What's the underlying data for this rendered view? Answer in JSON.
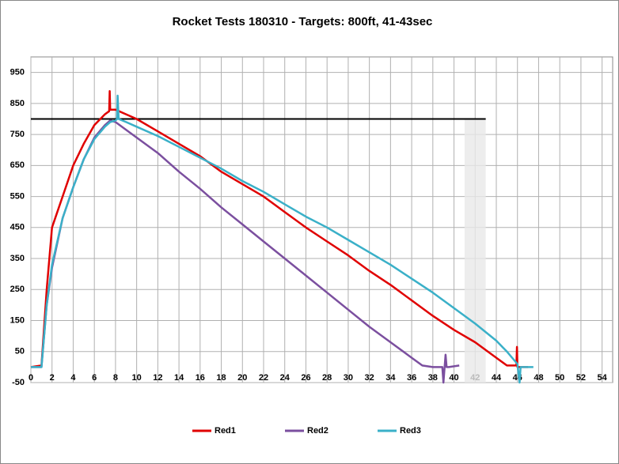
{
  "chart_data": {
    "type": "line",
    "title": "Rocket Tests 180310 - Targets: 800ft, 41-43sec",
    "xlim": [
      0,
      55
    ],
    "ylim": [
      -50,
      1000
    ],
    "xticks": [
      0,
      2,
      4,
      6,
      8,
      10,
      12,
      14,
      16,
      18,
      20,
      22,
      24,
      26,
      28,
      30,
      32,
      34,
      36,
      38,
      40,
      42,
      44,
      46,
      48,
      50,
      52,
      54
    ],
    "yticks": [
      -50,
      50,
      150,
      250,
      350,
      450,
      550,
      650,
      750,
      850,
      950
    ],
    "grid": true,
    "legend": "bottom",
    "target": {
      "value": 800,
      "x": [
        0,
        43
      ],
      "color": "#000000"
    },
    "shade": {
      "x": [
        41,
        43
      ],
      "color": "#e8e8e8"
    },
    "series": [
      {
        "name": "Red1",
        "color": "#e00000",
        "x": [
          0,
          1,
          1.5,
          2,
          3,
          4,
          5,
          6,
          7,
          7.4,
          7.45,
          7.5,
          8,
          9,
          10,
          12,
          14,
          16,
          18,
          20,
          22,
          24,
          26,
          28,
          30,
          32,
          34,
          36,
          38,
          40,
          42,
          44,
          45,
          45.9,
          45.95,
          46,
          47
        ],
        "values": [
          0,
          5,
          250,
          450,
          550,
          650,
          720,
          780,
          815,
          825,
          890,
          830,
          830,
          815,
          800,
          760,
          720,
          680,
          630,
          590,
          550,
          500,
          450,
          405,
          360,
          310,
          265,
          215,
          165,
          120,
          80,
          30,
          5,
          5,
          65,
          0,
          0
        ]
      },
      {
        "name": "Red2",
        "color": "#7b4f9f",
        "x": [
          0,
          1,
          1.5,
          2,
          3,
          4,
          5,
          6,
          7,
          7.5,
          8,
          9,
          10,
          12,
          14,
          16,
          18,
          20,
          22,
          24,
          26,
          28,
          30,
          32,
          34,
          36,
          37,
          38,
          38.9,
          39,
          39.2,
          39.3,
          39.5,
          40.5
        ],
        "values": [
          0,
          0,
          200,
          320,
          480,
          580,
          670,
          740,
          780,
          795,
          790,
          765,
          740,
          690,
          630,
          575,
          515,
          460,
          405,
          350,
          295,
          240,
          185,
          130,
          80,
          30,
          5,
          0,
          0,
          -50,
          40,
          0,
          0,
          5
        ]
      },
      {
        "name": "Red3",
        "color": "#3ab0c8",
        "x": [
          0,
          1,
          1.5,
          2,
          3,
          4,
          5,
          6,
          7,
          7.5,
          8,
          8.15,
          8.2,
          8.3,
          9,
          10,
          12,
          14,
          16,
          18,
          20,
          22,
          24,
          26,
          28,
          30,
          32,
          34,
          36,
          38,
          40,
          42,
          44,
          45,
          46,
          46.2,
          46.3,
          47,
          47.5
        ],
        "values": [
          0,
          0,
          200,
          330,
          480,
          580,
          670,
          735,
          775,
          790,
          795,
          800,
          875,
          800,
          790,
          775,
          745,
          710,
          675,
          640,
          600,
          565,
          525,
          485,
          450,
          410,
          370,
          330,
          285,
          240,
          190,
          140,
          85,
          50,
          10,
          -50,
          0,
          0,
          0
        ]
      }
    ]
  }
}
